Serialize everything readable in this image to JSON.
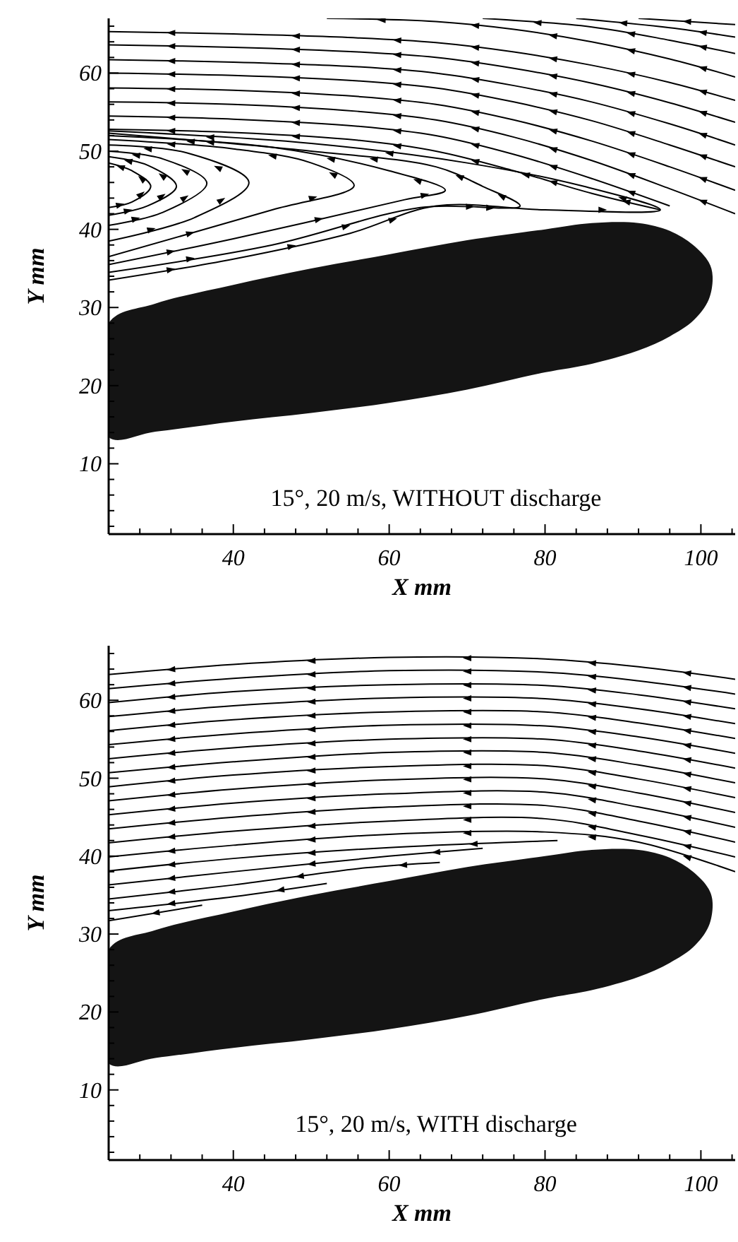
{
  "chart_data": [
    {
      "type": "line",
      "xlabel": "X mm",
      "ylabel": "Y mm",
      "xlim": [
        24,
        104.4
      ],
      "ylim": [
        1,
        67
      ],
      "marker": "none",
      "xticks": [
        {
          "value": 28,
          "label": null
        },
        {
          "value": 32,
          "label": null
        },
        {
          "value": 36,
          "label": null
        },
        40,
        {
          "value": 44,
          "label": null
        },
        {
          "value": 48,
          "label": null
        },
        {
          "value": 52,
          "label": null
        },
        {
          "value": 56,
          "label": null
        },
        60,
        {
          "value": 64,
          "label": null
        },
        {
          "value": 68,
          "label": null
        },
        {
          "value": 72,
          "label": null
        },
        {
          "value": 76,
          "label": null
        },
        80,
        {
          "value": 84,
          "label": null
        },
        {
          "value": 88,
          "label": null
        },
        {
          "value": 92,
          "label": null
        },
        {
          "value": 96,
          "label": null
        },
        100,
        {
          "value": 104,
          "label": null
        }
      ],
      "yticks": [
        {
          "value": 2,
          "label": null
        },
        {
          "value": 4,
          "label": null
        },
        {
          "value": 6,
          "label": null
        },
        {
          "value": 8,
          "label": null
        },
        10,
        {
          "value": 12,
          "label": null
        },
        {
          "value": 14,
          "label": null
        },
        {
          "value": 16,
          "label": null
        },
        {
          "value": 18,
          "label": null
        },
        20,
        {
          "value": 22,
          "label": null
        },
        {
          "value": 24,
          "label": null
        },
        {
          "value": 26,
          "label": null
        },
        {
          "value": 28,
          "label": null
        },
        30,
        {
          "value": 32,
          "label": null
        },
        {
          "value": 34,
          "label": null
        },
        {
          "value": 36,
          "label": null
        },
        {
          "value": 38,
          "label": null
        },
        40,
        {
          "value": 42,
          "label": null
        },
        {
          "value": 44,
          "label": null
        },
        {
          "value": 46,
          "label": null
        },
        {
          "value": 48,
          "label": null
        },
        50,
        {
          "value": 52,
          "label": null
        },
        {
          "value": 54,
          "label": null
        },
        {
          "value": 56,
          "label": null
        },
        {
          "value": 58,
          "label": null
        },
        60,
        {
          "value": 62,
          "label": null
        },
        {
          "value": 64,
          "label": null
        },
        {
          "value": 66,
          "label": null
        }
      ],
      "annotations": [
        "15°, 20 m/s, WITHOUT discharge"
      ],
      "series": [
        {
          "type": "area",
          "color": "#141414",
          "x": [
            24,
            30,
            40,
            50,
            60,
            70,
            80,
            86,
            92,
            96,
            99,
            101,
            101.5,
            101,
            99,
            96,
            92,
            86,
            80,
            70,
            60,
            50,
            40,
            30,
            24
          ],
          "values": [
            28,
            30.5,
            32.9,
            35,
            36.8,
            38.6,
            40,
            40.8,
            40.8,
            39.8,
            38,
            35.8,
            34,
            31,
            28.3,
            26.3,
            24.5,
            22.8,
            21.7,
            19.5,
            17.8,
            16.5,
            15.4,
            14.1,
            13.4
          ]
        },
        {
          "color": "#000000",
          "x": [
            24,
            40,
            56,
            66,
            76,
            86,
            96,
            104.4
          ],
          "values": [
            65.3,
            65.0,
            64.5,
            63.9,
            62.7,
            61.0,
            58.8,
            56.5
          ]
        },
        {
          "color": "#000000",
          "x": [
            24,
            40,
            56,
            66,
            76,
            86,
            96,
            104.4
          ],
          "values": [
            63.6,
            63.3,
            62.7,
            62.0,
            60.6,
            58.7,
            56.2,
            53.7
          ]
        },
        {
          "color": "#000000",
          "x": [
            24,
            40,
            56,
            66,
            76,
            86,
            96,
            104.4
          ],
          "values": [
            61.7,
            61.4,
            60.8,
            60.0,
            58.4,
            56.3,
            53.5,
            50.8
          ]
        },
        {
          "color": "#000000",
          "x": [
            24,
            40,
            56,
            66,
            76,
            86,
            96,
            104.4
          ],
          "values": [
            60.0,
            59.7,
            59.0,
            58.1,
            56.3,
            53.9,
            50.8,
            48.0
          ]
        },
        {
          "color": "#000000",
          "x": [
            24,
            40,
            56,
            66,
            76,
            86,
            96,
            104.4
          ],
          "values": [
            58.1,
            57.8,
            57.0,
            56.0,
            54.0,
            51.3,
            48.0,
            45.0
          ]
        },
        {
          "color": "#000000",
          "x": [
            24,
            40,
            56,
            66,
            76,
            86,
            96,
            104.4
          ],
          "values": [
            56.3,
            56.0,
            55.1,
            54.0,
            51.8,
            48.8,
            45.2,
            42.0
          ]
        },
        {
          "color": "#000000",
          "x": [
            24,
            40,
            56,
            66,
            76,
            86,
            96
          ],
          "values": [
            54.5,
            54.1,
            53.2,
            52.0,
            49.6,
            46.5,
            43.0
          ]
        },
        {
          "color": "#000000",
          "x": [
            24,
            40,
            56,
            66,
            76,
            86,
            94.8
          ],
          "values": [
            52.8,
            52.4,
            51.4,
            50.0,
            47.5,
            44.6,
            42.5
          ]
        },
        {
          "color": "#000000",
          "x": [
            52,
            66,
            76,
            86,
            96,
            104.4
          ],
          "values": [
            67,
            66.6,
            65.6,
            64.0,
            61.8,
            59.5
          ]
        },
        {
          "color": "#000000",
          "x": [
            72,
            86,
            96,
            104.4
          ],
          "values": [
            67,
            65.9,
            64.2,
            62.5
          ]
        },
        {
          "color": "#000000",
          "x": [
            84,
            96,
            104.4
          ],
          "values": [
            67,
            65.8,
            64.6
          ]
        },
        {
          "color": "#000000",
          "x": [
            92,
            104.4
          ],
          "values": [
            67,
            66.2
          ]
        },
        {
          "color": "#000000",
          "x": [
            24,
            27,
            29.4,
            27,
            24
          ],
          "values": [
            48.5,
            47.5,
            45.5,
            43.5,
            42.8
          ]
        },
        {
          "color": "#000000",
          "x": [
            24,
            29,
            32.7,
            29,
            24
          ],
          "values": [
            49.3,
            48.2,
            45.5,
            43,
            41.8
          ]
        },
        {
          "color": "#000000",
          "x": [
            24,
            31,
            36.6,
            31,
            24
          ],
          "values": [
            50,
            49,
            45.9,
            42.2,
            40.5
          ]
        },
        {
          "color": "#000000",
          "x": [
            24,
            34,
            42,
            35,
            24
          ],
          "values": [
            50.8,
            49.8,
            46,
            41.5,
            38.5
          ]
        },
        {
          "color": "#000000",
          "x": [
            24,
            40,
            50,
            55.5,
            45,
            24
          ],
          "values": [
            51.5,
            50.3,
            48.5,
            45.6,
            42.5,
            36.5
          ]
        },
        {
          "color": "#000000",
          "x": [
            24,
            45,
            60,
            67.2,
            62,
            40,
            24
          ],
          "values": [
            52,
            50.5,
            47.5,
            45,
            43.8,
            38.8,
            35.5
          ]
        },
        {
          "color": "#000000",
          "x": [
            24,
            50,
            66,
            72,
            76.8,
            64,
            45,
            24
          ],
          "values": [
            52.3,
            50,
            48,
            45.5,
            43,
            42.8,
            38,
            34.5
          ]
        },
        {
          "color": "#000000",
          "x": [
            24,
            50,
            70,
            85,
            94.8,
            80,
            66,
            55,
            40,
            24
          ],
          "values": [
            52.6,
            51,
            48.5,
            45.5,
            42.5,
            42.5,
            43,
            39.5,
            36.2,
            33.5
          ]
        }
      ]
    },
    {
      "type": "line",
      "xlabel": "X mm",
      "ylabel": "Y mm",
      "xlim": [
        24,
        104.4
      ],
      "ylim": [
        1,
        67
      ],
      "marker": "none",
      "xticks": [
        {
          "value": 28,
          "label": null
        },
        {
          "value": 32,
          "label": null
        },
        {
          "value": 36,
          "label": null
        },
        40,
        {
          "value": 44,
          "label": null
        },
        {
          "value": 48,
          "label": null
        },
        {
          "value": 52,
          "label": null
        },
        {
          "value": 56,
          "label": null
        },
        60,
        {
          "value": 64,
          "label": null
        },
        {
          "value": 68,
          "label": null
        },
        {
          "value": 72,
          "label": null
        },
        {
          "value": 76,
          "label": null
        },
        80,
        {
          "value": 84,
          "label": null
        },
        {
          "value": 88,
          "label": null
        },
        {
          "value": 92,
          "label": null
        },
        {
          "value": 96,
          "label": null
        },
        100,
        {
          "value": 104,
          "label": null
        }
      ],
      "yticks": [
        {
          "value": 2,
          "label": null
        },
        {
          "value": 4,
          "label": null
        },
        {
          "value": 6,
          "label": null
        },
        {
          "value": 8,
          "label": null
        },
        10,
        {
          "value": 12,
          "label": null
        },
        {
          "value": 14,
          "label": null
        },
        {
          "value": 16,
          "label": null
        },
        {
          "value": 18,
          "label": null
        },
        20,
        {
          "value": 22,
          "label": null
        },
        {
          "value": 24,
          "label": null
        },
        {
          "value": 26,
          "label": null
        },
        {
          "value": 28,
          "label": null
        },
        30,
        {
          "value": 32,
          "label": null
        },
        {
          "value": 34,
          "label": null
        },
        {
          "value": 36,
          "label": null
        },
        {
          "value": 38,
          "label": null
        },
        40,
        {
          "value": 42,
          "label": null
        },
        {
          "value": 44,
          "label": null
        },
        {
          "value": 46,
          "label": null
        },
        {
          "value": 48,
          "label": null
        },
        50,
        {
          "value": 52,
          "label": null
        },
        {
          "value": 54,
          "label": null
        },
        {
          "value": 56,
          "label": null
        },
        {
          "value": 58,
          "label": null
        },
        60,
        {
          "value": 62,
          "label": null
        },
        {
          "value": 64,
          "label": null
        },
        {
          "value": 66,
          "label": null
        }
      ],
      "annotations": [
        "15°, 20 m/s, WITH discharge"
      ],
      "series": [
        {
          "type": "area",
          "color": "#141414",
          "x": [
            24,
            30,
            40,
            50,
            60,
            70,
            80,
            86,
            92,
            96,
            99,
            101,
            101.5,
            101,
            99,
            96,
            92,
            86,
            80,
            70,
            60,
            50,
            40,
            30,
            24
          ],
          "values": [
            28,
            30.5,
            32.9,
            35,
            36.8,
            38.6,
            40,
            40.8,
            40.8,
            39.8,
            38,
            35.8,
            34,
            31,
            28.3,
            26.3,
            24.5,
            22.8,
            21.7,
            19.5,
            17.8,
            16.5,
            15.4,
            14.1,
            13.4
          ]
        },
        {
          "color": "#000000",
          "x": [
            24,
            40,
            60,
            80,
            92,
            104.4
          ],
          "values": [
            63.3,
            64.6,
            65.5,
            65.3,
            64.3,
            62.7
          ]
        },
        {
          "color": "#000000",
          "x": [
            24,
            40,
            60,
            80,
            92,
            104.4
          ],
          "values": [
            61.5,
            62.8,
            63.8,
            63.6,
            62.5,
            60.8
          ]
        },
        {
          "color": "#000000",
          "x": [
            24,
            40,
            60,
            80,
            92,
            104.4
          ],
          "values": [
            59.7,
            61.1,
            62.0,
            61.9,
            60.7,
            58.9
          ]
        },
        {
          "color": "#000000",
          "x": [
            24,
            40,
            60,
            80,
            92,
            104.4
          ],
          "values": [
            57.9,
            59.3,
            60.3,
            60.2,
            58.9,
            57.0
          ]
        },
        {
          "color": "#000000",
          "x": [
            24,
            40,
            60,
            80,
            92,
            104.4
          ],
          "values": [
            56.1,
            57.5,
            58.5,
            58.5,
            57.1,
            55.1
          ]
        },
        {
          "color": "#000000",
          "x": [
            24,
            40,
            60,
            80,
            92,
            104.4
          ],
          "values": [
            54.3,
            55.7,
            56.8,
            56.7,
            55.3,
            53.2
          ]
        },
        {
          "color": "#000000",
          "x": [
            24,
            40,
            60,
            80,
            92,
            104.4
          ],
          "values": [
            52.5,
            53.9,
            55.0,
            55.0,
            53.5,
            51.3
          ]
        },
        {
          "color": "#000000",
          "x": [
            24,
            40,
            60,
            80,
            92,
            104.4
          ],
          "values": [
            50.7,
            52.1,
            53.3,
            53.3,
            51.7,
            49.4
          ]
        },
        {
          "color": "#000000",
          "x": [
            24,
            40,
            60,
            80,
            92,
            104.4
          ],
          "values": [
            48.9,
            50.4,
            51.5,
            51.6,
            49.9,
            47.5
          ]
        },
        {
          "color": "#000000",
          "x": [
            24,
            40,
            60,
            80,
            92,
            104.4
          ],
          "values": [
            47.1,
            48.6,
            49.8,
            49.9,
            48.1,
            45.6
          ]
        },
        {
          "color": "#000000",
          "x": [
            24,
            40,
            60,
            80,
            92,
            104.4
          ],
          "values": [
            45.3,
            46.8,
            48.0,
            48.2,
            46.3,
            43.7
          ]
        },
        {
          "color": "#000000",
          "x": [
            24,
            40,
            60,
            80,
            92,
            104.4
          ],
          "values": [
            43.5,
            45.0,
            46.3,
            46.5,
            44.5,
            41.8
          ]
        },
        {
          "color": "#000000",
          "x": [
            24,
            40,
            60,
            80,
            92,
            104.4
          ],
          "values": [
            41.7,
            43.2,
            44.5,
            44.8,
            42.7,
            39.9
          ]
        },
        {
          "color": "#000000",
          "x": [
            24,
            40,
            60,
            80,
            92,
            104.4
          ],
          "values": [
            39.9,
            41.4,
            42.8,
            43.1,
            41.8,
            38.0
          ]
        },
        {
          "color": "#000000",
          "x": [
            24,
            40,
            60,
            81.6
          ],
          "values": [
            38.1,
            39.7,
            41.1,
            42.0
          ]
        },
        {
          "color": "#000000",
          "x": [
            24,
            40,
            60,
            72
          ],
          "values": [
            36.3,
            38.0,
            40.0,
            41.0
          ]
        },
        {
          "color": "#000000",
          "x": [
            24,
            40,
            57,
            66.5
          ],
          "values": [
            34.5,
            36.3,
            38.5,
            39.2
          ]
        },
        {
          "color": "#000000",
          "x": [
            24,
            40,
            52
          ],
          "values": [
            33,
            34.8,
            36.5
          ]
        },
        {
          "color": "#000000",
          "x": [
            24,
            36
          ],
          "values": [
            31.7,
            33.7
          ]
        }
      ]
    }
  ]
}
